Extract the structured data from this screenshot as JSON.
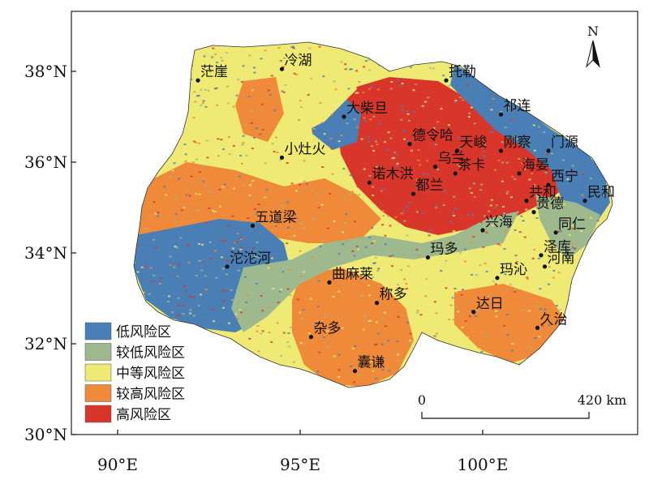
{
  "legend": [
    {
      "label": "低风险区",
      "color": "#4a7fb5"
    },
    {
      "label": "较低风险区",
      "color": "#9fb98e"
    },
    {
      "label": "中等风险区",
      "color": "#eeea73"
    },
    {
      "label": "较高风险区",
      "color": "#ee8a3a"
    },
    {
      "label": "高风险区",
      "color": "#d8362a"
    }
  ],
  "axes": {
    "lat_ticks": [
      {
        "value": 38,
        "label": "38°N"
      },
      {
        "value": 36,
        "label": "36°N"
      },
      {
        "value": 34,
        "label": "34°N"
      },
      {
        "value": 32,
        "label": "32°N"
      },
      {
        "value": 30,
        "label": "30°N"
      }
    ],
    "lon_ticks": [
      {
        "value": 90,
        "label": "90°E"
      },
      {
        "value": 95,
        "label": "95°E"
      },
      {
        "value": 100,
        "label": "100°E"
      }
    ]
  },
  "north_arrow": {
    "label": "N"
  },
  "scale_bar": {
    "start_label": "0",
    "end_label": "420 km"
  },
  "places": [
    {
      "name": "茫崖",
      "lon": 92.2,
      "lat": 37.8
    },
    {
      "name": "冷湖",
      "lon": 94.5,
      "lat": 38.05
    },
    {
      "name": "托勒",
      "lon": 99.0,
      "lat": 37.8
    },
    {
      "name": "大柴旦",
      "lon": 96.2,
      "lat": 37.0
    },
    {
      "name": "祁连",
      "lon": 100.5,
      "lat": 37.05
    },
    {
      "name": "德令哈",
      "lon": 98.0,
      "lat": 36.4
    },
    {
      "name": "天峻",
      "lon": 99.3,
      "lat": 36.25
    },
    {
      "name": "刚察",
      "lon": 100.5,
      "lat": 36.25
    },
    {
      "name": "门源",
      "lon": 101.8,
      "lat": 36.25
    },
    {
      "name": "小灶火",
      "lon": 94.5,
      "lat": 36.1
    },
    {
      "name": "乌兰",
      "lon": 98.7,
      "lat": 35.9
    },
    {
      "name": "茶卡",
      "lon": 99.25,
      "lat": 35.75
    },
    {
      "name": "海晏",
      "lon": 101.0,
      "lat": 35.75
    },
    {
      "name": "西宁",
      "lon": 101.8,
      "lat": 35.5
    },
    {
      "name": "诺木洪",
      "lon": 96.9,
      "lat": 35.55
    },
    {
      "name": "都兰",
      "lon": 98.1,
      "lat": 35.3
    },
    {
      "name": "共和",
      "lon": 101.2,
      "lat": 35.15
    },
    {
      "name": "民和",
      "lon": 102.8,
      "lat": 35.15
    },
    {
      "name": "贵德",
      "lon": 101.4,
      "lat": 34.9
    },
    {
      "name": "五道梁",
      "lon": 93.7,
      "lat": 34.6
    },
    {
      "name": "兴海",
      "lon": 100.0,
      "lat": 34.5
    },
    {
      "name": "同仁",
      "lon": 102.0,
      "lat": 34.45
    },
    {
      "name": "泽库",
      "lon": 101.6,
      "lat": 33.95
    },
    {
      "name": "沱沱河",
      "lon": 93.0,
      "lat": 33.7
    },
    {
      "name": "玛多",
      "lon": 98.5,
      "lat": 33.9
    },
    {
      "name": "河南",
      "lon": 101.7,
      "lat": 33.7
    },
    {
      "name": "玛沁",
      "lon": 100.4,
      "lat": 33.45
    },
    {
      "name": "曲麻莱",
      "lon": 95.8,
      "lat": 33.35
    },
    {
      "name": "称多",
      "lon": 97.1,
      "lat": 32.9
    },
    {
      "name": "达日",
      "lon": 99.75,
      "lat": 32.7
    },
    {
      "name": "杂多",
      "lon": 95.3,
      "lat": 32.15
    },
    {
      "name": "久治",
      "lon": 101.5,
      "lat": 32.35
    },
    {
      "name": "囊谦",
      "lon": 96.5,
      "lat": 31.4
    }
  ]
}
